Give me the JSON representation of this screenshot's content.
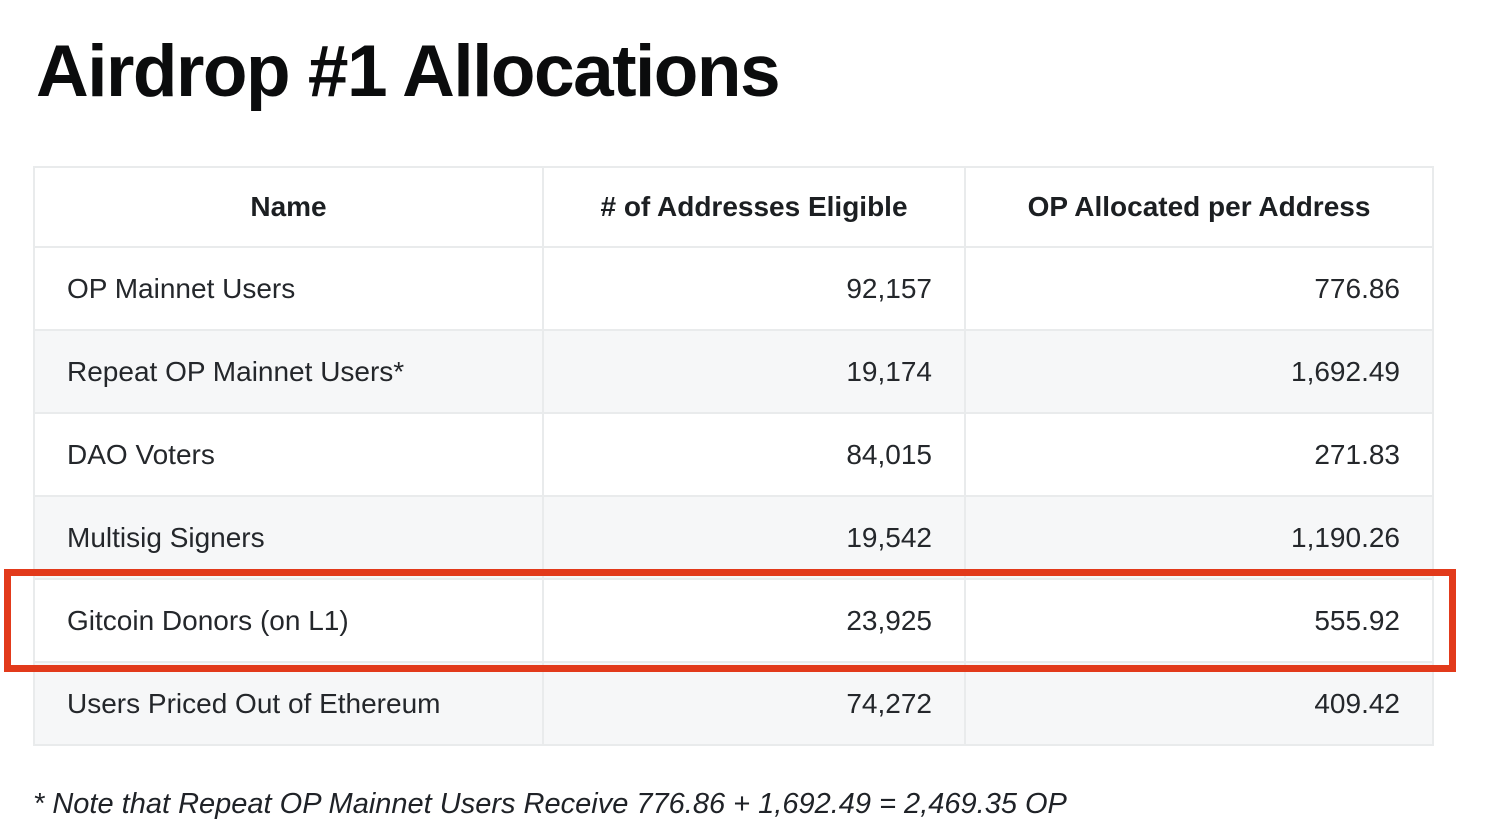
{
  "title": "Airdrop #1 Allocations",
  "table": {
    "columns": [
      "Name",
      "# of Addresses Eligible",
      "OP Allocated per Address"
    ],
    "rows": [
      {
        "name": "OP Mainnet Users",
        "addresses": "92,157",
        "op_per_address": "776.86"
      },
      {
        "name": "Repeat OP Mainnet Users*",
        "addresses": "19,174",
        "op_per_address": "1,692.49"
      },
      {
        "name": "DAO Voters",
        "addresses": "84,015",
        "op_per_address": "271.83"
      },
      {
        "name": "Multisig Signers",
        "addresses": "19,542",
        "op_per_address": "1,190.26"
      },
      {
        "name": "Gitcoin Donors (on L1)",
        "addresses": "23,925",
        "op_per_address": "555.92",
        "highlighted": true
      },
      {
        "name": "Users Priced Out of Ethereum",
        "addresses": "74,272",
        "op_per_address": "409.42"
      }
    ]
  },
  "footnote": "* Note that Repeat OP Mainnet Users Receive 776.86 + 1,692.49 = 2,469.35 OP",
  "colors": {
    "highlight_box": "#e23a1b",
    "row_alternate": "#f6f7f8",
    "table_border": "#e9ebec",
    "text": "#24272b"
  }
}
